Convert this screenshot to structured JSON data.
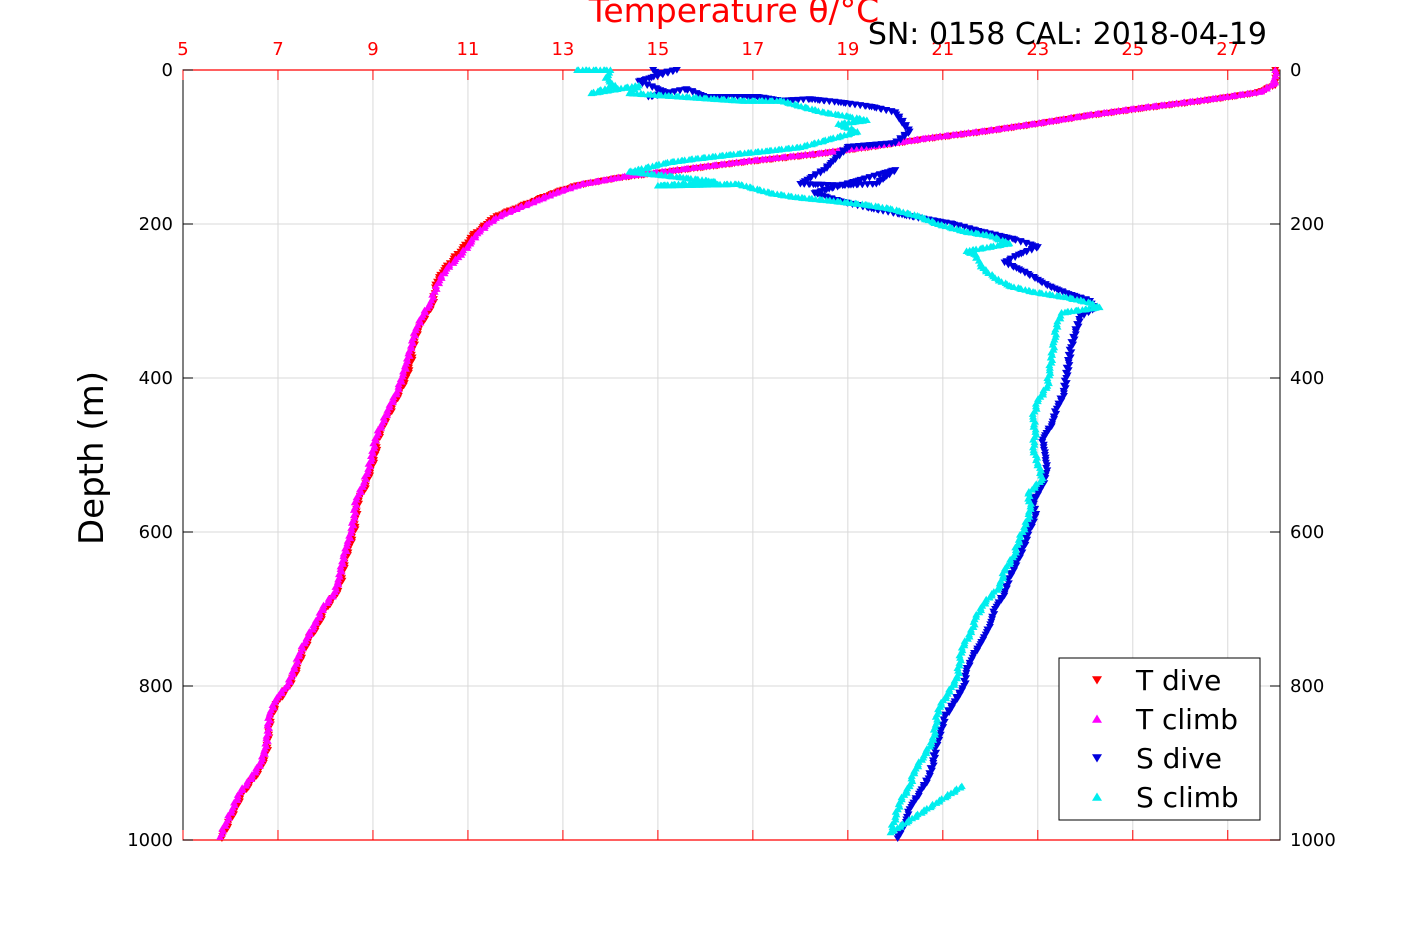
{
  "chart_data": {
    "type": "scatter",
    "title": "Temperature θ/°C",
    "subtitle": "SN: 0158  CAL: 2018-04-19",
    "xlabel": "Temperature θ/°C",
    "ylabel": "Depth (m)",
    "xlim": [
      5,
      28.1
    ],
    "ylim": [
      0,
      1000
    ],
    "y_inverted": true,
    "x_ticks": [
      5,
      7,
      9,
      11,
      13,
      15,
      17,
      19,
      21,
      23,
      25,
      27
    ],
    "y_ticks": [
      0,
      200,
      400,
      600,
      800,
      1000
    ],
    "grid": true,
    "legend_position": "bottom-right",
    "colors": {
      "T dive": "#ff0000",
      "T climb": "#ff00ff",
      "S dive": "#0000dd",
      "S climb": "#00eeee",
      "axis_top": "#ff0000",
      "grid": "#d9d9d9"
    },
    "series": [
      {
        "name": "T dive",
        "marker": "triangle-down",
        "points": [
          [
            28.0,
            0
          ],
          [
            28.0,
            10
          ],
          [
            28.0,
            20
          ],
          [
            27.6,
            30
          ],
          [
            26.5,
            40
          ],
          [
            25.2,
            50
          ],
          [
            24.0,
            60
          ],
          [
            23.0,
            70
          ],
          [
            21.9,
            80
          ],
          [
            20.6,
            90
          ],
          [
            19.5,
            100
          ],
          [
            18.3,
            110
          ],
          [
            16.8,
            120
          ],
          [
            15.5,
            130
          ],
          [
            14.2,
            140
          ],
          [
            13.3,
            150
          ],
          [
            12.8,
            160
          ],
          [
            12.4,
            170
          ],
          [
            12.0,
            180
          ],
          [
            11.6,
            190
          ],
          [
            11.4,
            200
          ],
          [
            11.1,
            215
          ],
          [
            10.9,
            230
          ],
          [
            10.7,
            245
          ],
          [
            10.5,
            260
          ],
          [
            10.35,
            275
          ],
          [
            10.3,
            290
          ],
          [
            10.25,
            305
          ],
          [
            10.1,
            320
          ],
          [
            9.95,
            340
          ],
          [
            9.85,
            360
          ],
          [
            9.8,
            380
          ],
          [
            9.7,
            400
          ],
          [
            9.55,
            420
          ],
          [
            9.4,
            440
          ],
          [
            9.25,
            460
          ],
          [
            9.1,
            480
          ],
          [
            9.05,
            500
          ],
          [
            8.95,
            520
          ],
          [
            8.85,
            540
          ],
          [
            8.7,
            560
          ],
          [
            8.65,
            580
          ],
          [
            8.6,
            600
          ],
          [
            8.5,
            620
          ],
          [
            8.4,
            640
          ],
          [
            8.35,
            660
          ],
          [
            8.25,
            680
          ],
          [
            8.0,
            700
          ],
          [
            7.85,
            720
          ],
          [
            7.65,
            740
          ],
          [
            7.5,
            760
          ],
          [
            7.4,
            780
          ],
          [
            7.25,
            800
          ],
          [
            7.0,
            820
          ],
          [
            6.85,
            840
          ],
          [
            6.8,
            860
          ],
          [
            6.78,
            880
          ],
          [
            6.7,
            900
          ],
          [
            6.5,
            920
          ],
          [
            6.25,
            940
          ],
          [
            6.1,
            960
          ],
          [
            5.95,
            980
          ],
          [
            5.82,
            998
          ]
        ]
      },
      {
        "name": "T climb",
        "marker": "triangle-up",
        "points": [
          [
            28.0,
            0
          ],
          [
            28.0,
            8
          ],
          [
            28.0,
            16
          ],
          [
            27.7,
            28
          ],
          [
            26.6,
            38
          ],
          [
            25.3,
            48
          ],
          [
            24.1,
            58
          ],
          [
            23.1,
            68
          ],
          [
            22.0,
            78
          ],
          [
            20.7,
            88
          ],
          [
            19.6,
            98
          ],
          [
            18.4,
            108
          ],
          [
            16.9,
            118
          ],
          [
            15.6,
            128
          ],
          [
            14.3,
            138
          ],
          [
            13.4,
            148
          ],
          [
            12.9,
            158
          ],
          [
            12.5,
            168
          ],
          [
            12.1,
            178
          ],
          [
            11.7,
            188
          ],
          [
            11.45,
            198
          ],
          [
            11.2,
            212
          ],
          [
            11.0,
            228
          ],
          [
            10.8,
            243
          ],
          [
            10.55,
            258
          ],
          [
            10.4,
            273
          ],
          [
            10.3,
            288
          ],
          [
            10.2,
            303
          ],
          [
            10.05,
            318
          ],
          [
            9.9,
            338
          ],
          [
            9.8,
            358
          ],
          [
            9.72,
            378
          ],
          [
            9.62,
            398
          ],
          [
            9.5,
            418
          ],
          [
            9.35,
            438
          ],
          [
            9.2,
            458
          ],
          [
            9.05,
            478
          ],
          [
            9.0,
            498
          ],
          [
            8.9,
            518
          ],
          [
            8.8,
            538
          ],
          [
            8.65,
            558
          ],
          [
            8.6,
            578
          ],
          [
            8.55,
            598
          ],
          [
            8.45,
            618
          ],
          [
            8.35,
            638
          ],
          [
            8.3,
            658
          ],
          [
            8.2,
            678
          ],
          [
            7.95,
            698
          ],
          [
            7.8,
            718
          ],
          [
            7.6,
            738
          ],
          [
            7.45,
            758
          ],
          [
            7.35,
            778
          ],
          [
            7.2,
            798
          ],
          [
            6.95,
            818
          ],
          [
            6.82,
            838
          ],
          [
            6.78,
            858
          ],
          [
            6.75,
            878
          ],
          [
            6.65,
            898
          ],
          [
            6.45,
            918
          ],
          [
            6.2,
            938
          ],
          [
            6.05,
            958
          ],
          [
            5.9,
            978
          ],
          [
            5.78,
            996
          ]
        ]
      },
      {
        "name": "S dive",
        "marker": "triangle-down",
        "points": [
          [
            14.9,
            0
          ],
          [
            15.0,
            5
          ],
          [
            15.4,
            0
          ],
          [
            14.6,
            15
          ],
          [
            15.2,
            30
          ],
          [
            14.8,
            35
          ],
          [
            15.6,
            25
          ],
          [
            16.0,
            35
          ],
          [
            17.1,
            35
          ],
          [
            17.6,
            40
          ],
          [
            18.2,
            38
          ],
          [
            18.8,
            42
          ],
          [
            19.5,
            48
          ],
          [
            20.0,
            55
          ],
          [
            20.3,
            80
          ],
          [
            20.0,
            95
          ],
          [
            19.0,
            100
          ],
          [
            18.5,
            130
          ],
          [
            18.0,
            148
          ],
          [
            18.8,
            150
          ],
          [
            19.6,
            148
          ],
          [
            20.0,
            130
          ],
          [
            18.3,
            160
          ],
          [
            18.8,
            170
          ],
          [
            19.5,
            180
          ],
          [
            20.3,
            190
          ],
          [
            21.2,
            200
          ],
          [
            21.8,
            210
          ],
          [
            22.5,
            220
          ],
          [
            23.0,
            230
          ],
          [
            22.6,
            240
          ],
          [
            22.3,
            250
          ],
          [
            22.8,
            265
          ],
          [
            23.2,
            280
          ],
          [
            23.6,
            290
          ],
          [
            24.1,
            300
          ],
          [
            24.2,
            310
          ],
          [
            23.9,
            320
          ],
          [
            23.8,
            340
          ],
          [
            23.7,
            360
          ],
          [
            23.65,
            380
          ],
          [
            23.6,
            400
          ],
          [
            23.55,
            420
          ],
          [
            23.4,
            440
          ],
          [
            23.3,
            460
          ],
          [
            23.1,
            480
          ],
          [
            23.15,
            500
          ],
          [
            23.2,
            520
          ],
          [
            23.1,
            540
          ],
          [
            22.9,
            560
          ],
          [
            22.95,
            580
          ],
          [
            22.8,
            600
          ],
          [
            22.7,
            620
          ],
          [
            22.55,
            640
          ],
          [
            22.4,
            660
          ],
          [
            22.3,
            680
          ],
          [
            22.1,
            700
          ],
          [
            22.0,
            720
          ],
          [
            21.85,
            740
          ],
          [
            21.65,
            760
          ],
          [
            21.5,
            780
          ],
          [
            21.45,
            800
          ],
          [
            21.25,
            820
          ],
          [
            21.05,
            840
          ],
          [
            20.95,
            860
          ],
          [
            20.85,
            880
          ],
          [
            20.8,
            900
          ],
          [
            20.7,
            920
          ],
          [
            20.5,
            940
          ],
          [
            20.3,
            960
          ],
          [
            20.2,
            980
          ],
          [
            20.05,
            998
          ]
        ]
      },
      {
        "name": "S climb",
        "marker": "triangle-up",
        "points": [
          [
            13.3,
            0
          ],
          [
            14.0,
            0
          ],
          [
            13.9,
            10
          ],
          [
            14.1,
            20
          ],
          [
            13.6,
            30
          ],
          [
            14.6,
            20
          ],
          [
            14.4,
            30
          ],
          [
            16.8,
            40
          ],
          [
            17.6,
            40
          ],
          [
            18.5,
            55
          ],
          [
            19.0,
            60
          ],
          [
            19.4,
            65
          ],
          [
            18.8,
            70
          ],
          [
            19.2,
            80
          ],
          [
            18.6,
            90
          ],
          [
            18.0,
            100
          ],
          [
            17.3,
            105
          ],
          [
            16.5,
            110
          ],
          [
            15.8,
            115
          ],
          [
            15.2,
            120
          ],
          [
            14.4,
            132
          ],
          [
            15.6,
            140
          ],
          [
            16.2,
            145
          ],
          [
            15.0,
            150
          ],
          [
            16.7,
            148
          ],
          [
            17.4,
            160
          ],
          [
            17.9,
            165
          ],
          [
            18.7,
            170
          ],
          [
            19.4,
            175
          ],
          [
            19.9,
            180
          ],
          [
            20.5,
            190
          ],
          [
            20.9,
            200
          ],
          [
            21.5,
            210
          ],
          [
            22.0,
            215
          ],
          [
            22.4,
            225
          ],
          [
            21.5,
            235
          ],
          [
            21.7,
            240
          ],
          [
            21.8,
            255
          ],
          [
            22.1,
            270
          ],
          [
            22.4,
            280
          ],
          [
            22.9,
            288
          ],
          [
            23.6,
            295
          ],
          [
            24.1,
            302
          ],
          [
            24.3,
            308
          ],
          [
            23.5,
            315
          ],
          [
            23.4,
            330
          ],
          [
            23.35,
            350
          ],
          [
            23.3,
            370
          ],
          [
            23.25,
            390
          ],
          [
            23.2,
            410
          ],
          [
            23.0,
            430
          ],
          [
            22.9,
            450
          ],
          [
            22.95,
            470
          ],
          [
            22.9,
            490
          ],
          [
            23.0,
            510
          ],
          [
            23.1,
            530
          ],
          [
            22.8,
            550
          ],
          [
            22.85,
            570
          ],
          [
            22.75,
            590
          ],
          [
            22.6,
            610
          ],
          [
            22.5,
            630
          ],
          [
            22.3,
            650
          ],
          [
            22.2,
            670
          ],
          [
            21.9,
            690
          ],
          [
            21.7,
            710
          ],
          [
            21.6,
            730
          ],
          [
            21.4,
            750
          ],
          [
            21.35,
            770
          ],
          [
            21.3,
            790
          ],
          [
            21.1,
            810
          ],
          [
            20.9,
            830
          ],
          [
            20.85,
            850
          ],
          [
            20.8,
            870
          ],
          [
            20.6,
            890
          ],
          [
            20.4,
            910
          ],
          [
            20.3,
            930
          ],
          [
            20.1,
            950
          ],
          [
            20.0,
            970
          ],
          [
            19.9,
            990
          ],
          [
            21.4,
            930
          ]
        ]
      }
    ]
  }
}
